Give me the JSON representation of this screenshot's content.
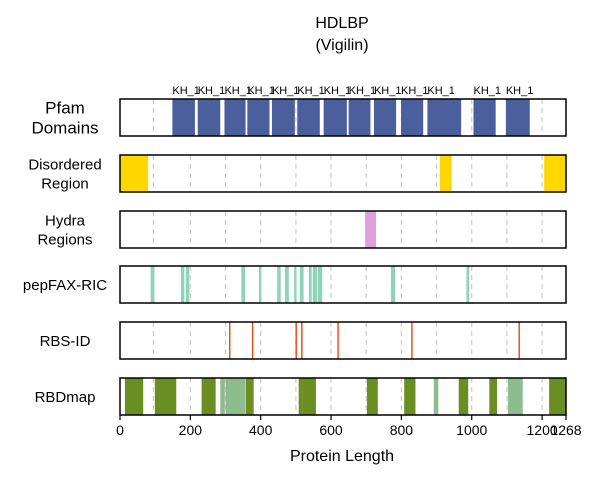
{
  "chart_data": {
    "type": "bar",
    "title": "HDLBP",
    "subtitle": "(Vigilin)",
    "xlabel": "Protein Length",
    "xlim": [
      0,
      1268
    ],
    "x_ticks": [
      0,
      200,
      400,
      600,
      800,
      1000,
      1200,
      1268
    ],
    "x_tick_labels": [
      "0",
      "200",
      "400",
      "600",
      "800",
      "1000",
      "1200",
      "1268"
    ],
    "grid_lines": [
      95,
      200,
      300,
      400,
      500,
      600,
      700,
      800,
      900,
      1000,
      1100,
      1200
    ],
    "grid": true,
    "tracks": [
      {
        "label": "Pfam\nDomains",
        "color": "#4a5f9c",
        "segments": [
          [
            149,
            213
          ],
          [
            221,
            285
          ],
          [
            297,
            357
          ],
          [
            362,
            425
          ],
          [
            432,
            497
          ],
          [
            504,
            568
          ],
          [
            579,
            645
          ],
          [
            650,
            712
          ],
          [
            722,
            785
          ],
          [
            799,
            862
          ],
          [
            874,
            970
          ],
          [
            1005,
            1068
          ],
          [
            1097,
            1165
          ]
        ],
        "segment_labels": [
          "KH_1",
          "KH_1",
          "KH_1",
          "KH_1",
          "KH_1",
          "KH_1",
          "KH_1",
          "KH_1",
          "KH_1",
          "KH_1",
          "KH_1",
          "KH_1",
          "KH_1"
        ]
      },
      {
        "label": "Disordered\nRegion",
        "color": "#ffd700",
        "segments": [
          [
            0,
            80
          ],
          [
            909,
            943
          ],
          [
            1206,
            1268
          ]
        ]
      },
      {
        "label": "Hydra\nRegions",
        "color": "#dda0dd",
        "segments": [
          [
            697,
            728
          ]
        ]
      },
      {
        "label": "pepFAX-RIC",
        "color": "#8fd4b8",
        "segments": [
          [
            87,
            98
          ],
          [
            173,
            183
          ],
          [
            187,
            197
          ],
          [
            345,
            356
          ],
          [
            395,
            402
          ],
          [
            447,
            457
          ],
          [
            469,
            480
          ],
          [
            495,
            502
          ],
          [
            511,
            522
          ],
          [
            537,
            545
          ],
          [
            548,
            560
          ],
          [
            562,
            575
          ],
          [
            770,
            782
          ],
          [
            985,
            993
          ]
        ]
      },
      {
        "label": "RBS-ID",
        "color": "#e8490f",
        "segments": [
          [
            310,
            314
          ],
          [
            375,
            379
          ],
          [
            499,
            503
          ],
          [
            515,
            519
          ],
          [
            618,
            622
          ],
          [
            828,
            832
          ],
          [
            1133,
            1137
          ]
        ]
      },
      {
        "label": "RBDmap",
        "color": "#6b8e23",
        "segments": [
          [
            14,
            66
          ],
          [
            99,
            160
          ],
          [
            232,
            272
          ],
          [
            285,
            298
          ],
          [
            300,
            357
          ],
          [
            358,
            380
          ],
          [
            508,
            520
          ],
          [
            520,
            557
          ],
          [
            702,
            733
          ],
          [
            808,
            840
          ],
          [
            892,
            905
          ],
          [
            963,
            990
          ],
          [
            1050,
            1072
          ],
          [
            1103,
            1145
          ],
          [
            1220,
            1268
          ]
        ],
        "segment_colors": [
          "#6b8e23",
          "#6b8e23",
          "#6b8e23",
          "#8fbc8f",
          "#8fbc8f",
          "#6b8e23",
          "#6b8e23",
          "#6b8e23",
          "#6b8e23",
          "#6b8e23",
          "#8fbc8f",
          "#6b8e23",
          "#6b8e23",
          "#8fbc8f",
          "#6b8e23"
        ]
      }
    ]
  }
}
